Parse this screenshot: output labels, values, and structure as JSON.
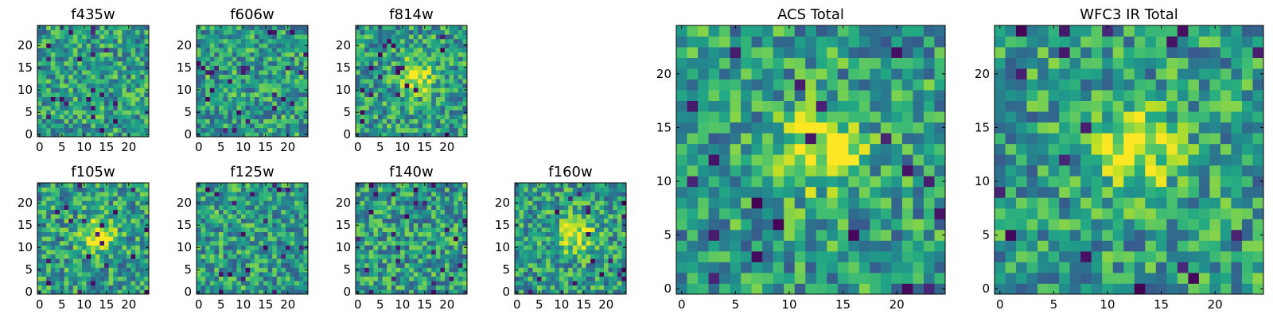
{
  "colormap": "viridis",
  "chart_data": [
    {
      "type": "heatmap",
      "title": "f435w",
      "grid": "25x25",
      "xlim": [
        0,
        24
      ],
      "ylim": [
        0,
        24
      ],
      "xticks": [
        0,
        5,
        10,
        15,
        20
      ],
      "yticks": [
        0,
        5,
        10,
        15,
        20
      ],
      "feature": "noise",
      "seed": 11
    },
    {
      "type": "heatmap",
      "title": "f606w",
      "grid": "25x25",
      "xlim": [
        0,
        24
      ],
      "ylim": [
        0,
        24
      ],
      "xticks": [
        0,
        5,
        10,
        15,
        20
      ],
      "yticks": [
        0,
        5,
        10,
        15,
        20
      ],
      "feature": "noise",
      "seed": 23
    },
    {
      "type": "heatmap",
      "title": "f814w",
      "grid": "25x25",
      "xlim": [
        0,
        24
      ],
      "ylim": [
        0,
        24
      ],
      "xticks": [
        0,
        5,
        10,
        15,
        20
      ],
      "yticks": [
        0,
        5,
        10,
        15,
        20
      ],
      "feature": "central source",
      "seed": 37
    },
    {
      "type": "heatmap",
      "title": "f105w",
      "grid": "25x25",
      "xlim": [
        0,
        24
      ],
      "ylim": [
        0,
        24
      ],
      "xticks": [
        0,
        5,
        10,
        15,
        20
      ],
      "yticks": [
        0,
        5,
        10,
        15,
        20
      ],
      "feature": "central source",
      "seed": 41
    },
    {
      "type": "heatmap",
      "title": "f125w",
      "grid": "25x25",
      "xlim": [
        0,
        24
      ],
      "ylim": [
        0,
        24
      ],
      "xticks": [
        0,
        5,
        10,
        15,
        20
      ],
      "yticks": [
        0,
        5,
        10,
        15,
        20
      ],
      "feature": "noise",
      "seed": 53
    },
    {
      "type": "heatmap",
      "title": "f140w",
      "grid": "25x25",
      "xlim": [
        0,
        24
      ],
      "ylim": [
        0,
        24
      ],
      "xticks": [
        0,
        5,
        10,
        15,
        20
      ],
      "yticks": [
        0,
        5,
        10,
        15,
        20
      ],
      "feature": "noise",
      "seed": 67
    },
    {
      "type": "heatmap",
      "title": "f160w",
      "grid": "25x25",
      "xlim": [
        0,
        24
      ],
      "ylim": [
        0,
        24
      ],
      "xticks": [
        0,
        5,
        10,
        15,
        20
      ],
      "yticks": [
        0,
        5,
        10,
        15,
        20
      ],
      "feature": "central source",
      "seed": 79
    },
    {
      "type": "heatmap",
      "title": "ACS Total",
      "grid": "25x25",
      "xlim": [
        0,
        24
      ],
      "ylim": [
        0,
        24
      ],
      "xticks": [
        0,
        5,
        10,
        15,
        20
      ],
      "yticks": [
        0,
        5,
        10,
        15,
        20
      ],
      "feature": "central source",
      "seed": 83
    },
    {
      "type": "heatmap",
      "title": "WFC3 IR Total",
      "grid": "25x25",
      "xlim": [
        0,
        24
      ],
      "ylim": [
        0,
        24
      ],
      "xticks": [
        0,
        5,
        10,
        15,
        20
      ],
      "yticks": [
        0,
        5,
        10,
        15,
        20
      ],
      "feature": "central source",
      "seed": 97
    }
  ]
}
